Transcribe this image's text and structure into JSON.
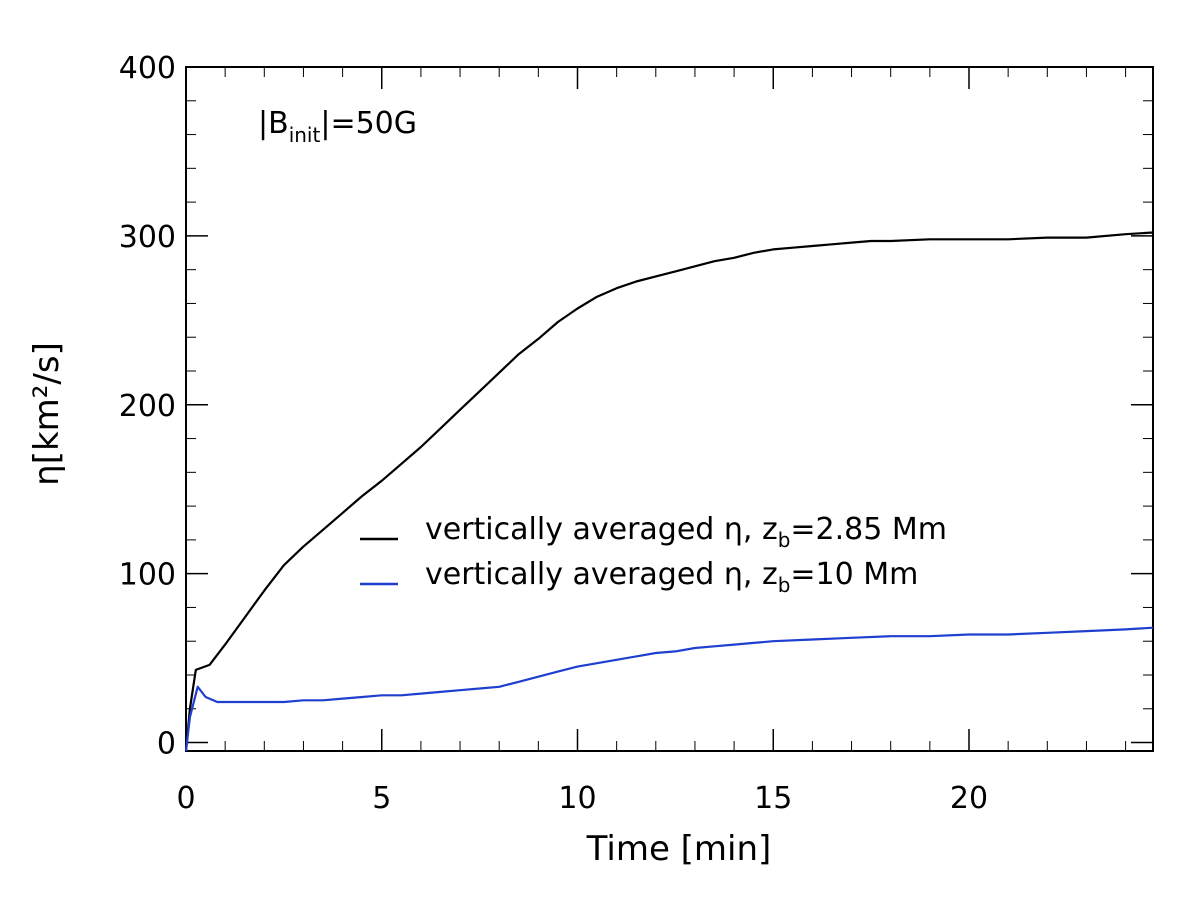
{
  "chart_data": {
    "type": "line",
    "title": "",
    "xlabel": "Time [min]",
    "ylabel": "η[km²/s]",
    "xlim": [
      0,
      24.7
    ],
    "ylim": [
      -5,
      400
    ],
    "xticks": [
      0,
      5,
      10,
      15,
      20
    ],
    "xtick_labels": [
      "0",
      "5",
      "10",
      "15",
      "20"
    ],
    "yticks": [
      0,
      100,
      200,
      300,
      400
    ],
    "ytick_labels": [
      "0",
      "100",
      "200",
      "300",
      "400"
    ],
    "grid": false,
    "annotation": {
      "prefix": "|B",
      "subscript": "init",
      "suffix": "|=50G"
    },
    "legend_position": "center-right",
    "series": [
      {
        "name": "vertically averaged η, z_b=2.85 Mm",
        "legend_prefix": "vertically averaged η, z",
        "legend_sub": "b",
        "legend_suffix": "=2.85 Mm",
        "color": "#000000",
        "x": [
          0,
          0.1,
          0.25,
          0.6,
          1,
          1.5,
          2,
          2.5,
          3,
          3.5,
          4,
          4.5,
          5,
          5.5,
          6,
          6.5,
          7,
          7.5,
          8,
          8.5,
          9,
          9.5,
          10,
          10.5,
          11,
          11.5,
          12,
          12.5,
          13,
          13.5,
          14,
          14.5,
          15,
          15.5,
          16,
          16.5,
          17,
          17.5,
          18,
          19,
          20,
          21,
          22,
          23,
          24,
          24.7
        ],
        "y": [
          -5,
          20,
          43,
          46,
          58,
          74,
          90,
          105,
          116,
          126,
          136,
          146,
          155,
          165,
          175,
          186,
          197,
          208,
          219,
          230,
          239,
          249,
          257,
          264,
          269,
          273,
          276,
          279,
          282,
          285,
          287,
          290,
          292,
          293,
          294,
          295,
          296,
          297,
          297,
          298,
          298,
          298,
          299,
          299,
          301,
          302
        ]
      },
      {
        "name": "vertically averaged η, z_b=10 Mm",
        "legend_prefix": "vertically averaged η, z",
        "legend_sub": "b",
        "legend_suffix": "=10 Mm",
        "color": "#1f3fd0",
        "x": [
          0,
          0.1,
          0.3,
          0.5,
          0.8,
          1.5,
          2.5,
          3,
          3.5,
          4,
          4.5,
          5,
          5.5,
          6,
          6.5,
          7,
          7.5,
          8,
          8.5,
          9,
          9.5,
          10,
          10.5,
          11,
          11.5,
          12,
          12.5,
          13,
          13.5,
          14,
          14.5,
          15,
          16,
          17,
          18,
          19,
          20,
          21,
          22,
          23,
          24,
          24.7
        ],
        "y": [
          -5,
          15,
          33,
          27,
          24,
          24,
          24,
          25,
          25,
          26,
          27,
          28,
          28,
          29,
          30,
          31,
          32,
          33,
          36,
          39,
          42,
          45,
          47,
          49,
          51,
          53,
          54,
          56,
          57,
          58,
          59,
          60,
          61,
          62,
          63,
          63,
          64,
          64,
          65,
          66,
          67,
          68
        ]
      }
    ]
  }
}
